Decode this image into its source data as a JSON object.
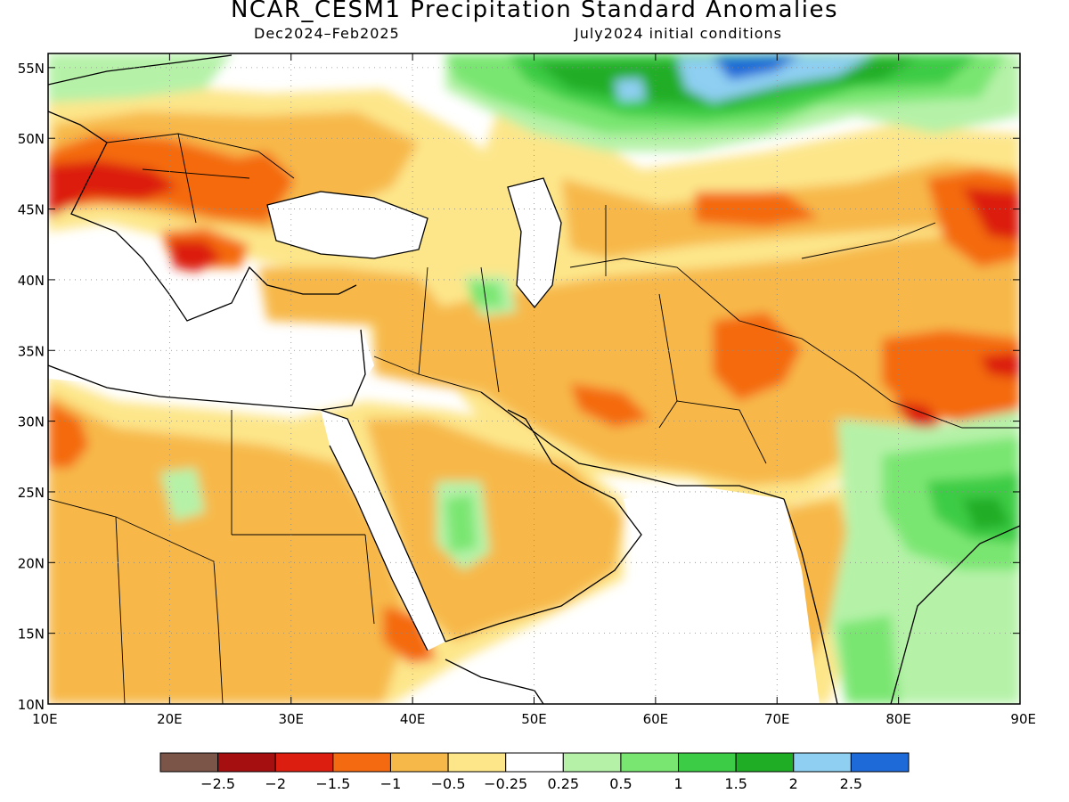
{
  "title": "NCAR_CESM1 Precipitation Standard Anomalies",
  "subtitle_left": "Dec2024–Feb2025",
  "subtitle_right": "July2024 initial conditions",
  "map": {
    "lon_range": [
      10,
      90
    ],
    "lat_range": [
      10,
      56
    ],
    "lon_ticks": [
      {
        "value": 10,
        "label": "10E"
      },
      {
        "value": 20,
        "label": "20E"
      },
      {
        "value": 30,
        "label": "30E"
      },
      {
        "value": 40,
        "label": "40E"
      },
      {
        "value": 50,
        "label": "50E"
      },
      {
        "value": 60,
        "label": "60E"
      },
      {
        "value": 70,
        "label": "70E"
      },
      {
        "value": 80,
        "label": "80E"
      },
      {
        "value": 90,
        "label": "90E"
      }
    ],
    "lat_ticks": [
      {
        "value": 10,
        "label": "10N"
      },
      {
        "value": 15,
        "label": "15N"
      },
      {
        "value": 20,
        "label": "20N"
      },
      {
        "value": 25,
        "label": "25N"
      },
      {
        "value": 30,
        "label": "30N"
      },
      {
        "value": 35,
        "label": "35N"
      },
      {
        "value": 40,
        "label": "40N"
      },
      {
        "value": 45,
        "label": "45N"
      },
      {
        "value": 50,
        "label": "50N"
      },
      {
        "value": 55,
        "label": "55N"
      }
    ]
  },
  "colorbar": {
    "colors": [
      "#7a5548",
      "#a50f0f",
      "#dc1e10",
      "#f46a10",
      "#f7b84a",
      "#fde68a",
      "#ffffff",
      "#b5f2a8",
      "#7ae672",
      "#3dcc45",
      "#20ad26",
      "#8ecff2",
      "#1e6ad8"
    ],
    "labels": [
      "−2.5",
      "−2",
      "−1.5",
      "−1",
      "−0.5",
      "−0.25",
      "0.25",
      "0.5",
      "1",
      "1.5",
      "2",
      "2.5"
    ]
  }
}
